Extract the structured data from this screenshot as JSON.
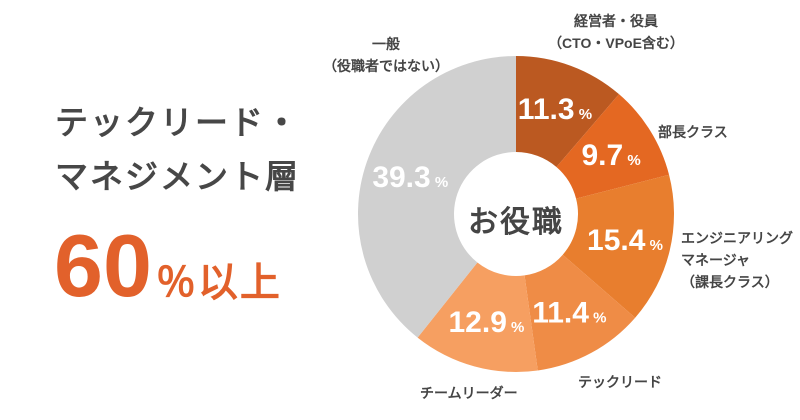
{
  "headline": {
    "line1": "テックリード・",
    "line2": "マネジメント層",
    "stat_number": "60",
    "stat_suffix": "％以上"
  },
  "colors": {
    "accent_orange": "#E2612B",
    "headline_text": "#474747",
    "label_text": "#454545",
    "percent_text": "#FFFFFF",
    "background": "#FFFFFF"
  },
  "chart_data": {
    "type": "pie",
    "variant": "donut",
    "title": "お役職",
    "center_label": "お役職",
    "start_angle_deg": 0,
    "clockwise": true,
    "value_suffix": "%",
    "segments": [
      {
        "label": "経営者・役員（CTO・VPoE含む）",
        "label_lines": [
          "経営者・役員",
          "（CTO・VPoE含む）"
        ],
        "value": 11.3,
        "color": "#BB5921"
      },
      {
        "label": "部長クラス",
        "label_lines": [
          "部長クラス"
        ],
        "value": 9.7,
        "color": "#E46822"
      },
      {
        "label": "エンジニアリングマネージャ（課長クラス）",
        "label_lines": [
          "エンジニアリング",
          "マネージャ",
          "（課長クラス）"
        ],
        "value": 15.4,
        "color": "#E87E2E"
      },
      {
        "label": "テックリード",
        "label_lines": [
          "テックリード"
        ],
        "value": 11.4,
        "color": "#EF8C46"
      },
      {
        "label": "チームリーダー",
        "label_lines": [
          "チームリーダー"
        ],
        "value": 12.9,
        "color": "#F69F61"
      },
      {
        "label": "一般（役職者ではない）",
        "label_lines": [
          "一般",
          "（役職者ではない）"
        ],
        "value": 39.3,
        "color": "#D0D0D0"
      }
    ]
  }
}
